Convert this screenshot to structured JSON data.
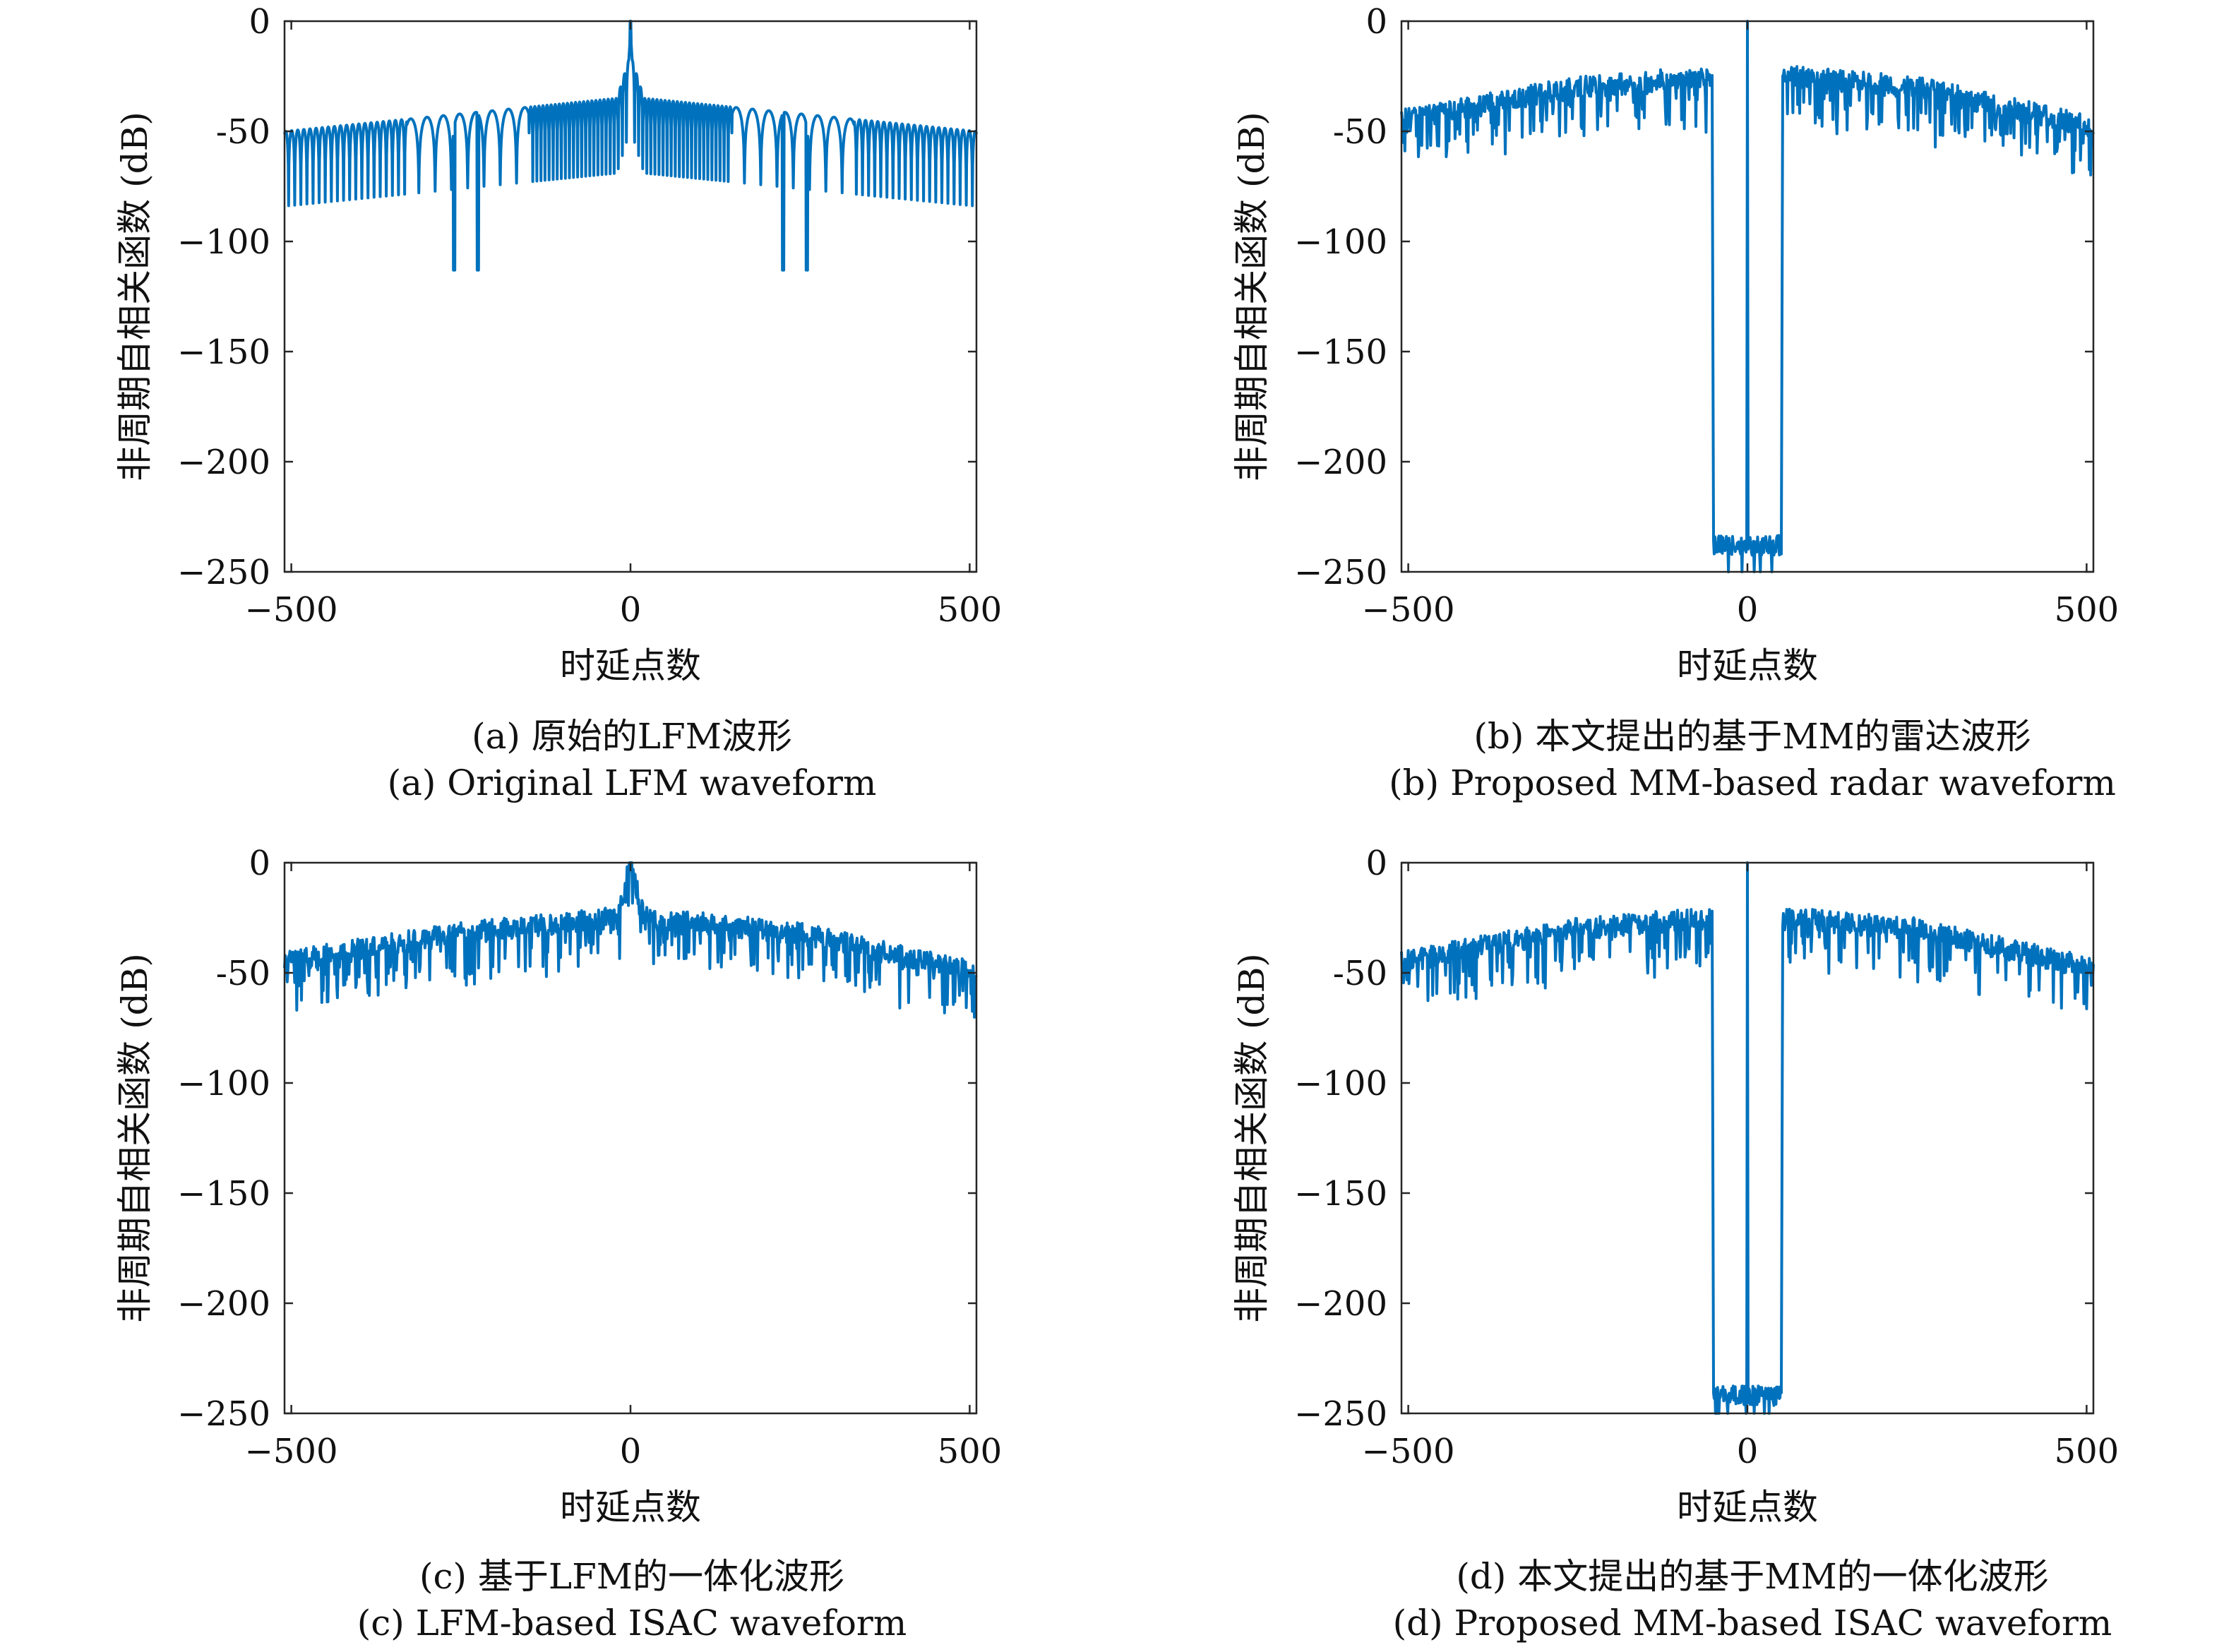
{
  "figure": {
    "panels": [
      {
        "id": "a",
        "caption_cn": "(a) 原始的LFM波形",
        "caption_en": "(a) Original LFM waveform"
      },
      {
        "id": "b",
        "caption_cn": "(b) 本文提出的基于MM的雷达波形",
        "caption_en": "(b) Proposed MM-based radar waveform"
      },
      {
        "id": "c",
        "caption_cn": "(c) 基于LFM的一体化波形",
        "caption_en": "(c) LFM-based ISAC waveform"
      },
      {
        "id": "d",
        "caption_cn": "(d) 本文提出的基于MM的一体化波形",
        "caption_en": "(d) Proposed MM-based ISAC waveform"
      }
    ]
  },
  "colors": {
    "line": "#0072BD",
    "axis": "#262626",
    "background": "#ffffff"
  },
  "chart_data": [
    {
      "panel": "a",
      "type": "line",
      "xlabel": "时延点数",
      "ylabel": "非周期自相关函数 (dB)",
      "xlim": [
        -510,
        510
      ],
      "ylim": [
        -250,
        0
      ],
      "xticks": [
        -500,
        0,
        500
      ],
      "xtick_labels": [
        "−500",
        "0",
        "500"
      ],
      "yticks": [
        0,
        -50,
        -100,
        -150,
        -200,
        -250
      ],
      "ytick_labels": [
        "0",
        "-50",
        "−100",
        "−150",
        "−200",
        "−250"
      ],
      "grid": false,
      "legend": "none",
      "series": [
        {
          "profile": "sinc-like sidelobes with nulls",
          "x": [
            -510,
            -300,
            -260,
            -200,
            -100,
            -20,
            0,
            20,
            100,
            200,
            260,
            300,
            510
          ],
          "y": [
            -50,
            -45,
            -113,
            -45,
            -45,
            -35,
            0,
            -35,
            -45,
            -45,
            -113,
            -45,
            -50
          ]
        }
      ]
    },
    {
      "panel": "b",
      "type": "line",
      "xlabel": "时延点数",
      "ylabel": "非周期自相关函数 (dB)",
      "xlim": [
        -510,
        510
      ],
      "ylim": [
        -250,
        0
      ],
      "xticks": [
        -500,
        0,
        500
      ],
      "xtick_labels": [
        "−500",
        "0",
        "500"
      ],
      "yticks": [
        0,
        -50,
        -100,
        -150,
        -200,
        -250
      ],
      "ytick_labels": [
        "0",
        "-50",
        "−100",
        "−150",
        "−200",
        "−250"
      ],
      "grid": false,
      "legend": "none",
      "series": [
        {
          "profile": "noisy sidelobe floor with suppressed notch",
          "x": [
            -510,
            -250,
            -52,
            -50,
            -2,
            0,
            2,
            50,
            52,
            250,
            510
          ],
          "y": [
            -45,
            -30,
            -25,
            -238,
            -238,
            0,
            -238,
            -238,
            -25,
            -30,
            -48
          ],
          "notch_range": [
            -50,
            50
          ],
          "notch_level": -238
        }
      ]
    },
    {
      "panel": "c",
      "type": "line",
      "xlabel": "时延点数",
      "ylabel": "非周期自相关函数 (dB)",
      "xlim": [
        -510,
        510
      ],
      "ylim": [
        -250,
        0
      ],
      "xticks": [
        -500,
        0,
        500
      ],
      "xtick_labels": [
        "−500",
        "0",
        "500"
      ],
      "yticks": [
        0,
        -50,
        -100,
        -150,
        -200,
        -250
      ],
      "ytick_labels": [
        "0",
        "-50",
        "−100",
        "−150",
        "−200",
        "−250"
      ],
      "grid": false,
      "legend": "none",
      "series": [
        {
          "profile": "noisy sidelobe floor",
          "x": [
            -510,
            -250,
            -20,
            0,
            20,
            250,
            510
          ],
          "y": [
            -45,
            -32,
            -25,
            0,
            -25,
            -32,
            -50
          ]
        }
      ]
    },
    {
      "panel": "d",
      "type": "line",
      "xlabel": "时延点数",
      "ylabel": "非周期自相关函数 (dB)",
      "xlim": [
        -510,
        510
      ],
      "ylim": [
        -250,
        0
      ],
      "xticks": [
        -500,
        0,
        500
      ],
      "xtick_labels": [
        "−500",
        "0",
        "500"
      ],
      "yticks": [
        0,
        -50,
        -100,
        -150,
        -200,
        -250
      ],
      "ytick_labels": [
        "0",
        "-50",
        "−100",
        "−150",
        "−200",
        "−250"
      ],
      "grid": false,
      "legend": "none",
      "series": [
        {
          "profile": "noisy sidelobe floor with suppressed notch",
          "x": [
            -510,
            -250,
            -52,
            -50,
            -2,
            0,
            2,
            50,
            52,
            250,
            510
          ],
          "y": [
            -45,
            -30,
            -25,
            -242,
            -242,
            0,
            -242,
            -242,
            -25,
            -30,
            -48
          ],
          "notch_range": [
            -50,
            50
          ],
          "notch_level": -242
        }
      ]
    }
  ]
}
